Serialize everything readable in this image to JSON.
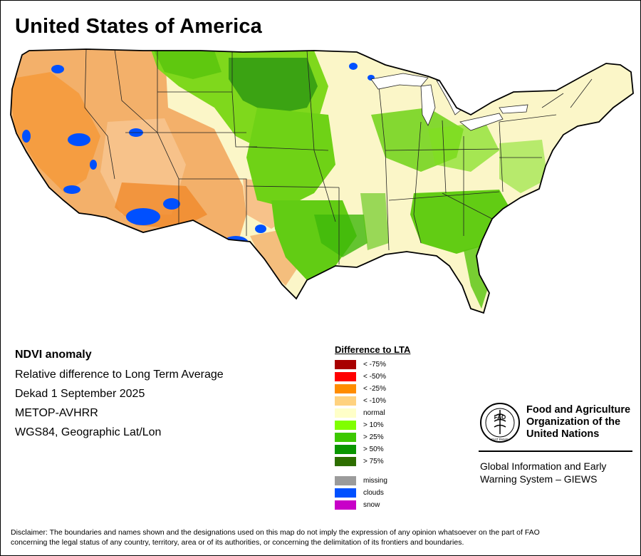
{
  "title": "United States of America",
  "info": {
    "heading": "NDVI anomaly",
    "lines": [
      "Relative difference to Long Term Average",
      "Dekad 1 September 2025",
      "METOP-AVHRR",
      "WGS84, Geographic Lat/Lon"
    ]
  },
  "legend": {
    "title": "Difference to LTA",
    "items": [
      {
        "label": "< -75%",
        "color": "#a80000"
      },
      {
        "label": "< -50%",
        "color": "#ff0000"
      },
      {
        "label": "< -25%",
        "color": "#ff8c00"
      },
      {
        "label": "< -10%",
        "color": "#ffd27f"
      },
      {
        "label": "normal",
        "color": "#ffffc8"
      },
      {
        "label": "> 10%",
        "color": "#80ff00"
      },
      {
        "label": "> 25%",
        "color": "#3cc800"
      },
      {
        "label": "> 50%",
        "color": "#0a9600"
      },
      {
        "label": "> 75%",
        "color": "#2d6e00"
      }
    ],
    "extra": [
      {
        "label": "missing",
        "color": "#9b9b9b"
      },
      {
        "label": "clouds",
        "color": "#0050ff"
      },
      {
        "label": "snow",
        "color": "#c800c8"
      }
    ]
  },
  "fao": {
    "name_line1": "Food and Agriculture",
    "name_line2": "Organization of the",
    "name_line3": "United Nations",
    "giews_line1": "Global Information and Early",
    "giews_line2": "Warning System – GIEWS",
    "emblem_text": "FAO",
    "motto": "FIAT PANIS"
  },
  "disclaimer": {
    "line1": "Disclaimer: The boundaries and names shown and the designations used on this map do not imply the expression of any opinion whatsoever on the part of FAO",
    "line2": "concerning the legal status of any country, territory, area or of its authorities, or concerning the delimitation of its frontiers and boundaries."
  }
}
